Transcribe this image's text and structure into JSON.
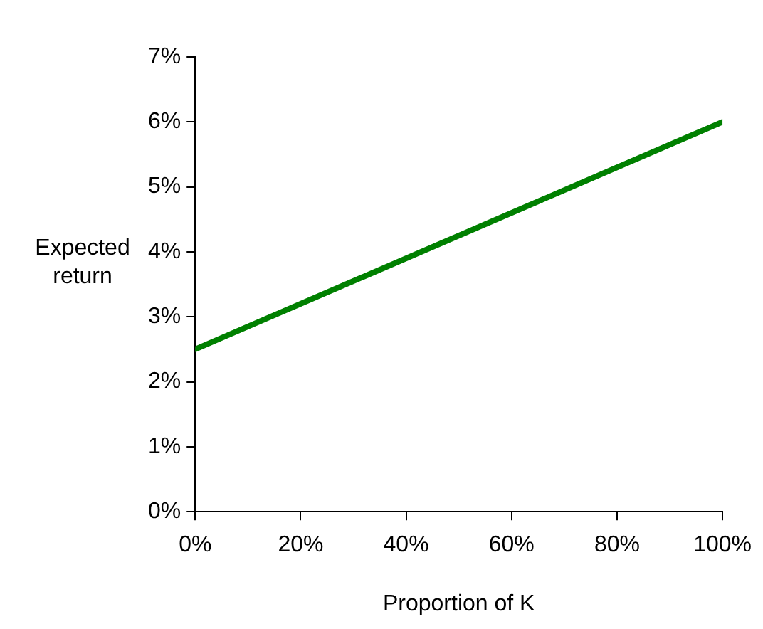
{
  "chart_data": {
    "type": "line",
    "xlabel": "Proportion of K",
    "ylabel": "Expected return",
    "x": [
      0,
      100
    ],
    "series": [
      {
        "color": "#008000",
        "values": [
          2.5,
          6
        ]
      }
    ],
    "xlim": [
      0,
      100
    ],
    "xticks": [
      {
        "value": 0,
        "label": "0%"
      },
      {
        "value": 20,
        "label": "20%"
      },
      {
        "value": 40,
        "label": "40%"
      },
      {
        "value": 60,
        "label": "60%"
      },
      {
        "value": 80,
        "label": "80%"
      },
      {
        "value": 100,
        "label": "100%"
      }
    ],
    "ylim": [
      0,
      7
    ],
    "yticks": [
      {
        "value": 0,
        "label": "0%"
      },
      {
        "value": 1,
        "label": "1%"
      },
      {
        "value": 2,
        "label": "2%"
      },
      {
        "value": 3,
        "label": "3%"
      },
      {
        "value": 4,
        "label": "4%"
      },
      {
        "value": 5,
        "label": "5%"
      },
      {
        "value": 6,
        "label": "6%"
      },
      {
        "value": 7,
        "label": "7%"
      }
    ],
    "grid": false,
    "legend": false,
    "marker": "none",
    "line_style": "solid"
  }
}
